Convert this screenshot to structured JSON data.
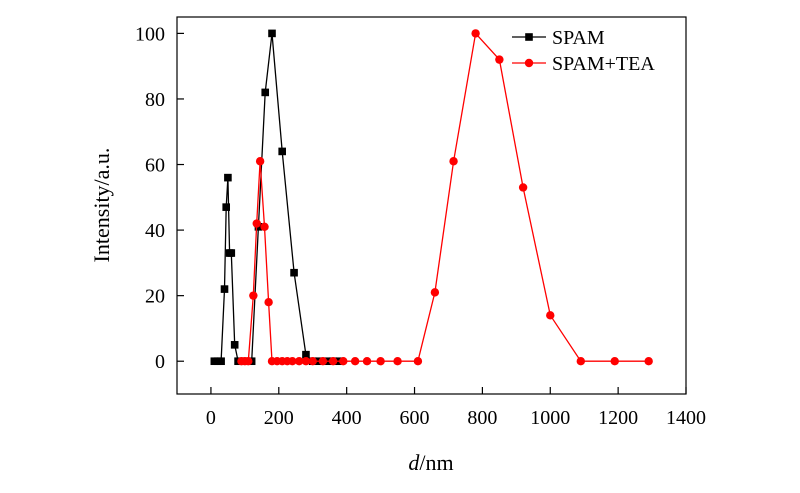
{
  "chart_data": {
    "type": "line",
    "xlabel_italic": "d",
    "xlabel_rest": "/nm",
    "ylabel": "Intensity/a.u.",
    "xlim": [
      -100,
      1400
    ],
    "ylim": [
      -10,
      105
    ],
    "xticks": [
      0,
      200,
      400,
      600,
      800,
      1000,
      1200,
      1400
    ],
    "yticks": [
      0,
      20,
      40,
      60,
      80,
      100
    ],
    "legend_position": "top-right",
    "series": [
      {
        "name": "SPAM",
        "color": "#000000",
        "marker": "square",
        "x": [
          10,
          20,
          30,
          40,
          45,
          50,
          55,
          60,
          70,
          80,
          100,
          120,
          140,
          160,
          180,
          210,
          245,
          280,
          300,
          320,
          340,
          360,
          380
        ],
        "y": [
          0,
          0,
          0,
          22,
          47,
          56,
          33,
          33,
          5,
          0,
          0,
          0,
          41,
          82,
          100,
          64,
          27,
          2,
          0,
          0,
          0,
          0,
          0
        ]
      },
      {
        "name": "SPAM+TEA",
        "color": "#ff0000",
        "marker": "circle",
        "x": [
          90,
          100,
          110,
          125,
          135,
          145,
          158,
          170,
          180,
          195,
          210,
          225,
          240,
          260,
          280,
          300,
          330,
          360,
          390,
          425,
          460,
          500,
          550,
          610,
          660,
          715,
          780,
          850,
          920,
          1000,
          1090,
          1190,
          1290
        ],
        "y": [
          0,
          0,
          0,
          20,
          42,
          61,
          41,
          18,
          0,
          0,
          0,
          0,
          0,
          0,
          0,
          0,
          0,
          0,
          0,
          0,
          0,
          0,
          0,
          0,
          21,
          61,
          100,
          92,
          53,
          14,
          0,
          0,
          0
        ]
      }
    ]
  }
}
